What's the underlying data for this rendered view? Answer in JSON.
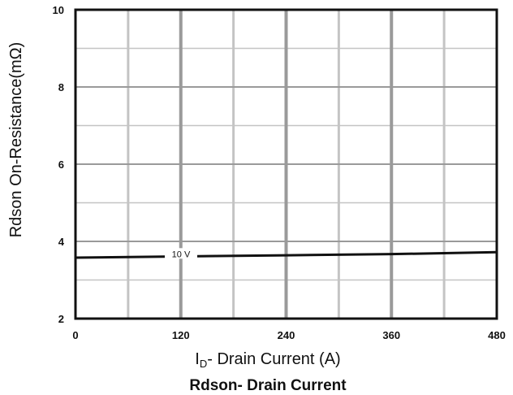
{
  "chart_data": {
    "type": "line",
    "title": "Rdson- Drain Current",
    "xlabel_main": "I",
    "xlabel_sub": "D",
    "xlabel_rest": "- Drain Current (A)",
    "ylabel": "Rdson On-Resistance(mΩ)",
    "xlim": [
      0,
      480
    ],
    "ylim": [
      2,
      10
    ],
    "x_ticks": [
      0,
      120,
      240,
      360,
      480
    ],
    "y_ticks": [
      2,
      4,
      6,
      8,
      10
    ],
    "x_grid_minor": [
      60,
      180,
      300,
      420
    ],
    "y_grid_minor": [
      3,
      5,
      7,
      9
    ],
    "grid": true,
    "series": [
      {
        "name": "10 V",
        "x": [
          0,
          120,
          240,
          360,
          480
        ],
        "y": [
          3.58,
          3.61,
          3.64,
          3.67,
          3.72
        ]
      }
    ],
    "colors": {
      "line": "#111111",
      "grid_major": "#9a9a9a",
      "grid_minor": "#c4c4c4",
      "frame": "#111111"
    }
  }
}
